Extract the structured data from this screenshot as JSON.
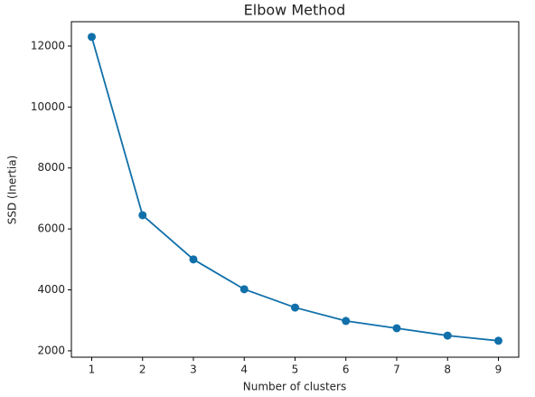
{
  "chart_data": {
    "type": "line",
    "title": "Elbow Method",
    "x_label": "Number of clusters",
    "y_label": "SSD (Inertia)",
    "x": [
      1,
      2,
      3,
      4,
      5,
      6,
      7,
      8,
      9
    ],
    "series": [
      {
        "color": "#1170aa",
        "values": [
          12300,
          6450,
          5000,
          4020,
          3420,
          2980,
          2740,
          2500,
          2330
        ]
      }
    ],
    "xlim": [
      0.6,
      9.4
    ],
    "ylim": [
      1790,
      12800
    ],
    "xticks": [
      1,
      2,
      3,
      4,
      5,
      6,
      7,
      8,
      9
    ],
    "yticks": [
      2000,
      4000,
      6000,
      8000,
      10000,
      12000
    ],
    "grid": false
  }
}
